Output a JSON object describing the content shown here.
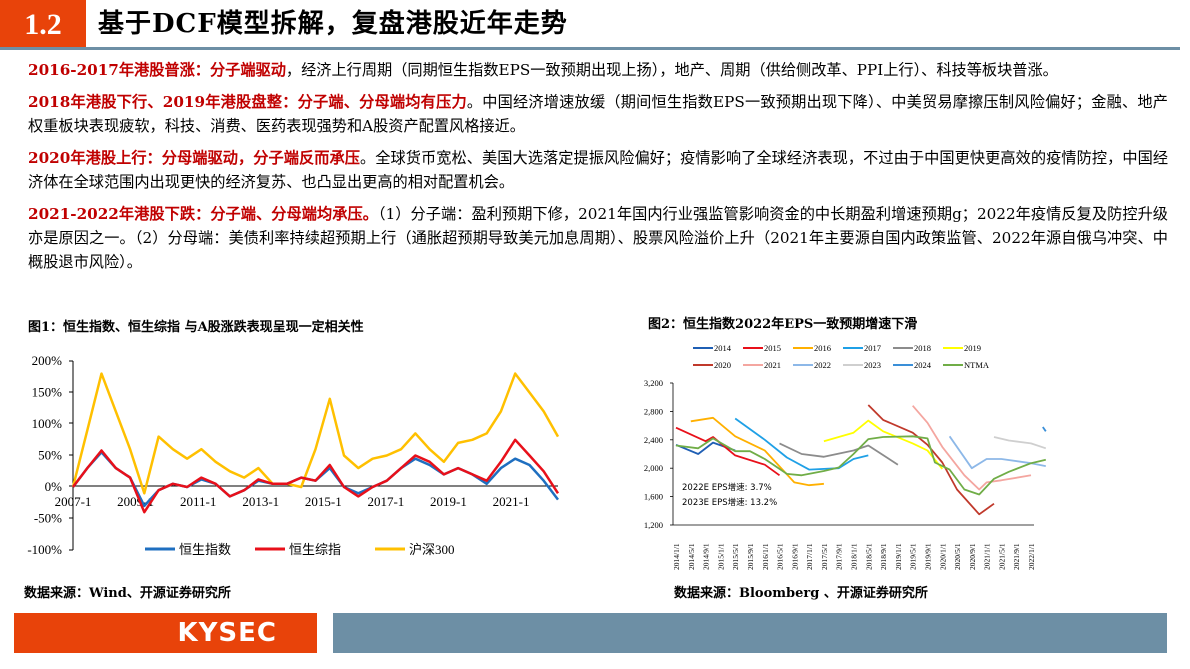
{
  "header": {
    "section_number": "1.2",
    "title": "基于DCF模型拆解，复盘港股近年走势",
    "accent_color": "#e8430a",
    "rule_color": "#6d8fa5"
  },
  "paragraphs": [
    {
      "highlight": "2016-2017年港股普涨：分子端驱动",
      "body": "，经济上行周期（同期恒生指数EPS一致预期出现上扬），地产、周期（供给侧改革、PPI上行）、科技等板块普涨。"
    },
    {
      "highlight": "2018年港股下行、2019年港股盘整：分子端、分母端均有压力",
      "body": "。中国经济增速放缓（期间恒生指数EPS一致预期出现下降）、中美贸易摩擦压制风险偏好；金融、地产权重板块表现疲软，科技、消费、医药表现强势和A股资产配置风格接近。"
    },
    {
      "highlight": "2020年港股上行：分母端驱动，分子端反而承压",
      "body": "。全球货币宽松、美国大选落定提振风险偏好；疫情影响了全球经济表现，不过由于中国更快更高效的疫情防控，中国经济体在全球范围内出现更快的经济复苏、也凸显出更高的相对配置机会。"
    },
    {
      "highlight": "2021-2022年港股下跌：分子端、分母端均承压。",
      "body": "（1）分子端：盈利预期下修，2021年国内行业强监管影响资金的中长期盈利增速预期g；2022年疫情反复及防控升级亦是原因之一。（2）分母端：美债利率持续超预期上行（通胀超预期导致美元加息周期）、股票风险溢价上升（2021年主要源自国内政策监管、2022年源自俄乌冲突、中概股退市风险）。"
    }
  ],
  "figure1": {
    "title": "图1：恒生指数、恒生综指 与A股涨跌表现呈现一定相关性",
    "source": "数据来源：Wind、开源证券研究所"
  },
  "figure2": {
    "title": "图2：恒生指数2022年EPS一致预期增速下滑",
    "source": "数据来源：Bloomberg 、开源证券研究所",
    "annotation_1": "2022E EPS增速: 3.7%",
    "annotation_2": "2023E EPS增速: 13.2%"
  },
  "footer": {
    "brand": "KYSEC",
    "brand_color": "#e8430a",
    "bar_color": "#6d8fa5"
  },
  "chart_data": [
    {
      "type": "line",
      "title": "图1：恒生指数、恒生综指 与A股涨跌表现呈现一定相关性",
      "xlabel": "",
      "ylabel": "",
      "ylim": [
        -1.0,
        2.0
      ],
      "y_ticks": [
        "200%",
        "150%",
        "100%",
        "50%",
        "0%",
        "-50%",
        "-100%"
      ],
      "x_ticks": [
        "2007-1",
        "2009-1",
        "2011-1",
        "2013-1",
        "2015-1",
        "2017-1",
        "2019-1",
        "2021-1"
      ],
      "legend_position": "bottom",
      "grid": false,
      "x": [
        "2007-1",
        "2007-7",
        "2007-10",
        "2008-1",
        "2008-7",
        "2009-1",
        "2009-7",
        "2010-1",
        "2010-7",
        "2011-1",
        "2011-7",
        "2012-1",
        "2012-7",
        "2013-1",
        "2013-7",
        "2014-1",
        "2014-7",
        "2015-1",
        "2015-6",
        "2015-9",
        "2016-1",
        "2016-7",
        "2017-1",
        "2017-7",
        "2018-1",
        "2018-7",
        "2019-1",
        "2019-7",
        "2020-1",
        "2020-7",
        "2021-1",
        "2021-2",
        "2021-7",
        "2022-1",
        "2022-4"
      ],
      "series": [
        {
          "name": "恒生指数",
          "color": "#1f6fc0",
          "values": [
            0.0,
            0.3,
            0.55,
            0.3,
            0.15,
            -0.3,
            -0.05,
            0.05,
            0.0,
            0.12,
            0.05,
            -0.15,
            -0.05,
            0.1,
            0.05,
            0.05,
            0.15,
            0.1,
            0.3,
            0.0,
            -0.1,
            0.0,
            0.1,
            0.3,
            0.45,
            0.35,
            0.2,
            0.3,
            0.2,
            0.05,
            0.3,
            0.45,
            0.35,
            0.1,
            -0.2
          ]
        },
        {
          "name": "恒生综指",
          "color": "#e8101a",
          "values": [
            0.0,
            0.3,
            0.58,
            0.3,
            0.15,
            -0.4,
            -0.05,
            0.05,
            0.0,
            0.15,
            0.05,
            -0.15,
            -0.05,
            0.12,
            0.05,
            0.05,
            0.15,
            0.1,
            0.35,
            0.0,
            -0.15,
            0.0,
            0.1,
            0.3,
            0.5,
            0.4,
            0.2,
            0.3,
            0.2,
            0.1,
            0.4,
            0.75,
            0.5,
            0.25,
            -0.1
          ]
        },
        {
          "name": "沪深300",
          "color": "#ffc000",
          "values": [
            0.0,
            0.9,
            1.8,
            1.2,
            0.6,
            -0.1,
            0.8,
            0.6,
            0.45,
            0.6,
            0.4,
            0.25,
            0.15,
            0.3,
            0.05,
            0.05,
            0.0,
            0.6,
            1.4,
            0.5,
            0.3,
            0.45,
            0.5,
            0.6,
            0.85,
            0.6,
            0.4,
            0.7,
            0.75,
            0.85,
            1.2,
            1.8,
            1.5,
            1.2,
            0.8
          ]
        }
      ]
    },
    {
      "type": "line",
      "title": "图2：恒生指数2022年EPS一致预期增速下滑",
      "xlabel": "",
      "ylabel": "",
      "ylim": [
        1200,
        3200
      ],
      "y_ticks": [
        "3,200",
        "2,800",
        "2,400",
        "2,000",
        "1,600",
        "1,200"
      ],
      "x_ticks": [
        "2014/1/1",
        "2014/5/1",
        "2014/9/1",
        "2015/1/1",
        "2015/5/1",
        "2015/9/1",
        "2016/1/1",
        "2016/5/1",
        "2016/9/1",
        "2017/1/1",
        "2017/5/1",
        "2017/9/1",
        "2018/1/1",
        "2018/5/1",
        "2018/9/1",
        "2019/1/1",
        "2019/5/1",
        "2019/9/1",
        "2020/1/1",
        "2020/5/1",
        "2020/9/1",
        "2021/1/1",
        "2021/5/1",
        "2021/9/1",
        "2022/1/1"
      ],
      "legend_position": "top",
      "grid": false,
      "annotations": [
        "2022E EPS增速: 3.7%",
        "2023E EPS增速: 13.2%"
      ],
      "series": [
        {
          "name": "2014",
          "color": "#1f5fb4",
          "points": [
            [
              0,
              2330
            ],
            [
              1.5,
              2200
            ],
            [
              2.5,
              2360
            ],
            [
              4,
              2250
            ]
          ]
        },
        {
          "name": "2015",
          "color": "#e8101a",
          "points": [
            [
              0,
              2570
            ],
            [
              2,
              2380
            ],
            [
              2.5,
              2440
            ],
            [
              4,
              2180
            ],
            [
              6,
              2050
            ],
            [
              7,
              1900
            ]
          ]
        },
        {
          "name": "2016",
          "color": "#ffb000",
          "points": [
            [
              1,
              2660
            ],
            [
              2.5,
              2710
            ],
            [
              4,
              2450
            ],
            [
              6,
              2250
            ],
            [
              8,
              1800
            ],
            [
              9,
              1760
            ],
            [
              10,
              1780
            ]
          ]
        },
        {
          "name": "2017",
          "color": "#1fa0e6",
          "points": [
            [
              4,
              2700
            ],
            [
              6,
              2400
            ],
            [
              7.5,
              2150
            ],
            [
              9,
              1980
            ],
            [
              11,
              2000
            ],
            [
              12,
              2130
            ],
            [
              13,
              2180
            ]
          ]
        },
        {
          "name": "2018",
          "color": "#8c8c8c",
          "points": [
            [
              7,
              2350
            ],
            [
              8.5,
              2200
            ],
            [
              10,
              2160
            ],
            [
              12,
              2250
            ],
            [
              13,
              2320
            ],
            [
              15,
              2050
            ]
          ]
        },
        {
          "name": "2019",
          "color": "#ffff00",
          "points": [
            [
              10,
              2380
            ],
            [
              12,
              2500
            ],
            [
              13,
              2670
            ],
            [
              14,
              2520
            ],
            [
              16,
              2350
            ],
            [
              17,
              2250
            ],
            [
              18,
              1990
            ]
          ]
        },
        {
          "name": "2020",
          "color": "#c0392b",
          "points": [
            [
              13,
              2890
            ],
            [
              14,
              2680
            ],
            [
              16,
              2500
            ],
            [
              17,
              2330
            ],
            [
              18,
              2080
            ],
            [
              19,
              1700
            ],
            [
              20.5,
              1350
            ],
            [
              21.5,
              1500
            ]
          ]
        },
        {
          "name": "2021",
          "color": "#f4a6a0",
          "points": [
            [
              16,
              2880
            ],
            [
              17,
              2640
            ],
            [
              18,
              2300
            ],
            [
              19.5,
              1900
            ],
            [
              20.5,
              1700
            ],
            [
              21,
              1800
            ],
            [
              22,
              1830
            ],
            [
              24,
              1900
            ]
          ]
        },
        {
          "name": "2022",
          "color": "#8db8e8",
          "points": [
            [
              18.5,
              2450
            ],
            [
              20,
              2000
            ],
            [
              21,
              2130
            ],
            [
              22,
              2130
            ],
            [
              24,
              2070
            ],
            [
              25,
              2030
            ]
          ]
        },
        {
          "name": "2023",
          "color": "#cfcfcf",
          "points": [
            [
              21.5,
              2440
            ],
            [
              22.5,
              2390
            ],
            [
              24,
              2350
            ],
            [
              25,
              2280
            ]
          ]
        },
        {
          "name": "2024",
          "color": "#3a8fd8",
          "points": [
            [
              24.8,
              2580
            ],
            [
              25,
              2520
            ]
          ]
        },
        {
          "name": "NTMA",
          "color": "#70ad47",
          "points": [
            [
              0,
              2320
            ],
            [
              1.5,
              2280
            ],
            [
              2.5,
              2420
            ],
            [
              4,
              2240
            ],
            [
              5,
              2240
            ],
            [
              6,
              2130
            ],
            [
              7.5,
              1920
            ],
            [
              8.5,
              1900
            ],
            [
              10,
              1960
            ],
            [
              11,
              2010
            ],
            [
              12,
              2200
            ],
            [
              13,
              2410
            ],
            [
              14,
              2440
            ],
            [
              16,
              2450
            ],
            [
              17,
              2420
            ],
            [
              17.5,
              2080
            ],
            [
              18.5,
              1980
            ],
            [
              19.5,
              1700
            ],
            [
              20.5,
              1630
            ],
            [
              21.5,
              1850
            ],
            [
              22.5,
              1950
            ],
            [
              24,
              2070
            ],
            [
              25,
              2120
            ]
          ]
        }
      ]
    }
  ]
}
